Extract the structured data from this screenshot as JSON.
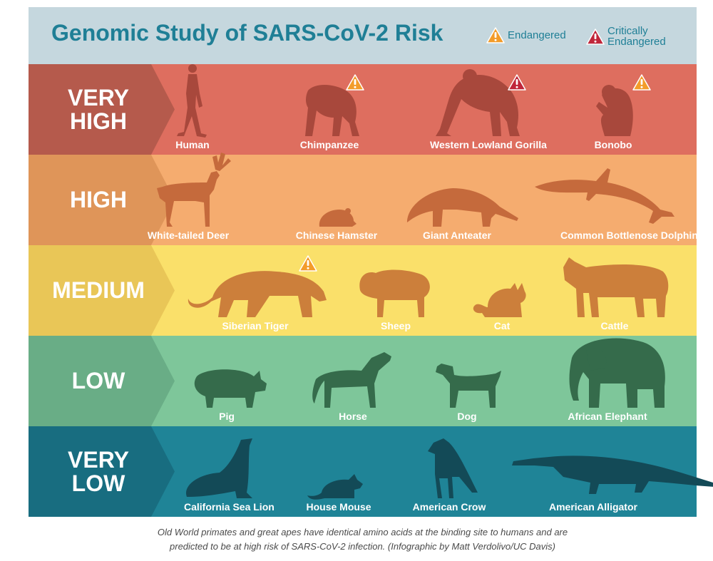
{
  "header": {
    "title": "Genomic Study of SARS-CoV-2 Risk",
    "legend": {
      "endangered": "Endangered",
      "critically_line1": "Critically",
      "critically_line2": "Endangered"
    }
  },
  "colors": {
    "title": "#1f7f96",
    "endangered_icon": "#f39c2a",
    "critically_icon": "#c0263a"
  },
  "bands": [
    {
      "label": "VERY\nHIGH",
      "bg": "#de6e5f",
      "chevron": "#b55a4c",
      "silhouette": "#a8483c",
      "animals": [
        {
          "name": "Human",
          "icon": "human-silhouette-icon",
          "status": ""
        },
        {
          "name": "Chimpanzee",
          "icon": "chimpanzee-silhouette-icon",
          "status": "endangered"
        },
        {
          "name": "Western Lowland Gorilla",
          "icon": "gorilla-silhouette-icon",
          "status": "critically"
        },
        {
          "name": "Bonobo",
          "icon": "bonobo-silhouette-icon",
          "status": "endangered"
        }
      ]
    },
    {
      "label": "HIGH",
      "bg": "#f5ac6f",
      "chevron": "#df9559",
      "silhouette": "#c56a3c",
      "animals": [
        {
          "name": "White-tailed Deer",
          "icon": "deer-silhouette-icon",
          "status": ""
        },
        {
          "name": "Chinese Hamster",
          "icon": "hamster-silhouette-icon",
          "status": ""
        },
        {
          "name": "Giant Anteater",
          "icon": "anteater-silhouette-icon",
          "status": ""
        },
        {
          "name": "Common Bottlenose Dolphin",
          "icon": "dolphin-silhouette-icon",
          "status": ""
        }
      ]
    },
    {
      "label": "MEDIUM",
      "bg": "#fae06a",
      "chevron": "#e9c657",
      "silhouette": "#cc7f3b",
      "animals": [
        {
          "name": "Siberian Tiger",
          "icon": "tiger-silhouette-icon",
          "status": "endangered"
        },
        {
          "name": "Sheep",
          "icon": "sheep-silhouette-icon",
          "status": ""
        },
        {
          "name": "Cat",
          "icon": "cat-silhouette-icon",
          "status": ""
        },
        {
          "name": "Cattle",
          "icon": "cattle-silhouette-icon",
          "status": ""
        }
      ]
    },
    {
      "label": "LOW",
      "bg": "#7ec69a",
      "chevron": "#69ad86",
      "silhouette": "#356b4b",
      "animals": [
        {
          "name": "Pig",
          "icon": "pig-silhouette-icon",
          "status": ""
        },
        {
          "name": "Horse",
          "icon": "horse-silhouette-icon",
          "status": ""
        },
        {
          "name": "Dog",
          "icon": "dog-silhouette-icon",
          "status": ""
        },
        {
          "name": "African Elephant",
          "icon": "elephant-silhouette-icon",
          "status": ""
        }
      ]
    },
    {
      "label": "VERY\nLOW",
      "bg": "#1f8497",
      "chevron": "#186d80",
      "silhouette": "#134a57",
      "animals": [
        {
          "name": "California Sea Lion",
          "icon": "sea-lion-silhouette-icon",
          "status": ""
        },
        {
          "name": "House Mouse",
          "icon": "mouse-silhouette-icon",
          "status": ""
        },
        {
          "name": "American Crow",
          "icon": "crow-silhouette-icon",
          "status": ""
        },
        {
          "name": "American Alligator",
          "icon": "alligator-silhouette-icon",
          "status": ""
        }
      ]
    }
  ],
  "caption": {
    "line1": "Old World primates and great apes have identical amino acids at the binding site to humans and are",
    "line2": "predicted to be at high risk of SARS-CoV-2 infection. (Infographic by  Matt Verdolivo/UC Davis)"
  }
}
